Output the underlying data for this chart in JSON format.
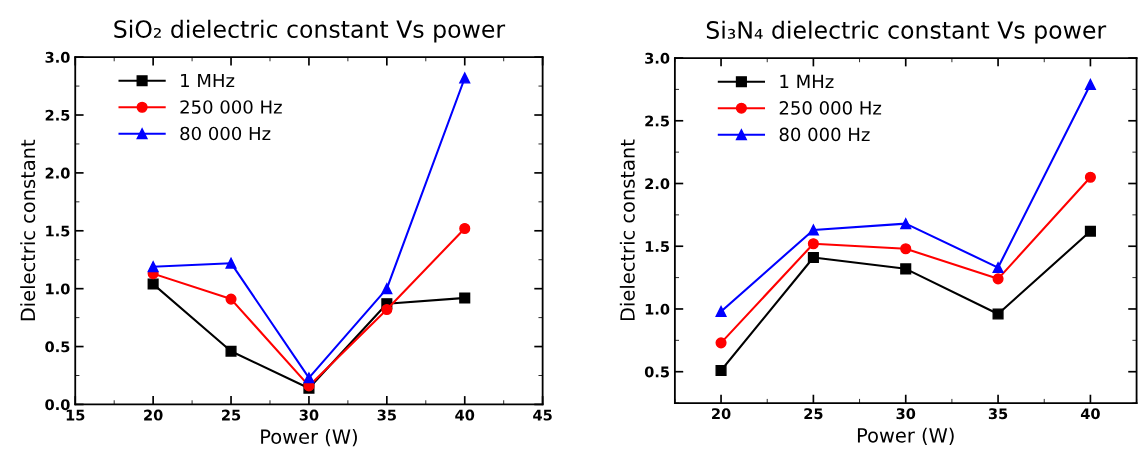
{
  "chart_data": [
    {
      "type": "line",
      "title": "SiO₂ dielectric constant Vs power",
      "xlabel": "Power (W)",
      "ylabel": "Dielectric constant",
      "x": [
        20,
        25,
        30,
        35,
        40
      ],
      "xlim": [
        15,
        45
      ],
      "xticks": [
        15,
        20,
        25,
        30,
        35,
        40,
        45
      ],
      "ylim": [
        0,
        3
      ],
      "yticks": [
        {
          "value": 0,
          "label": "0.0"
        },
        0.5,
        {
          "value": 1,
          "label": "1.0"
        },
        1.5,
        {
          "value": 2,
          "label": "2.0"
        },
        2.5,
        {
          "value": 3,
          "label": "3.0"
        }
      ],
      "grid": false,
      "legend": "top left",
      "series": [
        {
          "name": "1 MHz",
          "color": "#000000",
          "marker": "square",
          "values": [
            1.04,
            0.46,
            0.14,
            0.87,
            0.92
          ]
        },
        {
          "name": "250 000 Hz",
          "color": "#ff0000",
          "marker": "circle",
          "values": [
            1.13,
            0.91,
            0.16,
            0.82,
            1.52
          ]
        },
        {
          "name": "80 000 Hz",
          "color": "#0000ff",
          "marker": "triangle",
          "values": [
            1.19,
            1.22,
            0.23,
            1.0,
            2.82
          ]
        }
      ]
    },
    {
      "type": "line",
      "title": "Si₃N₄ dielectric constant Vs power",
      "xlabel": "Power (W)",
      "ylabel": "Dielectric constant",
      "x": [
        20,
        25,
        30,
        35,
        40
      ],
      "xlim": [
        17.5,
        42.5
      ],
      "xticks": [
        20,
        25,
        30,
        35,
        40
      ],
      "ylim": [
        0.25,
        3
      ],
      "yticks": [
        0.5,
        {
          "value": 1,
          "label": "1.0"
        },
        1.5,
        {
          "value": 2,
          "label": "2.0"
        },
        2.5,
        {
          "value": 3,
          "label": "3.0"
        }
      ],
      "grid": false,
      "legend": "top left",
      "series": [
        {
          "name": "1 MHz",
          "color": "#000000",
          "marker": "square",
          "values": [
            0.51,
            1.41,
            1.32,
            0.96,
            1.62
          ]
        },
        {
          "name": "250 000 Hz",
          "color": "#ff0000",
          "marker": "circle",
          "values": [
            0.73,
            1.52,
            1.48,
            1.24,
            2.05
          ]
        },
        {
          "name": "80 000 Hz",
          "color": "#0000ff",
          "marker": "triangle",
          "values": [
            0.98,
            1.63,
            1.68,
            1.33,
            2.79
          ]
        }
      ]
    }
  ]
}
